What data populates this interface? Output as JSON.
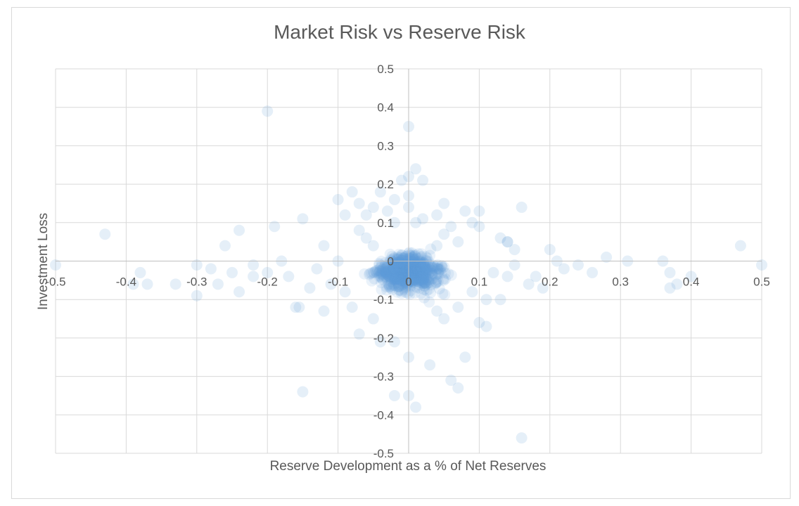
{
  "chart_data": {
    "type": "scatter",
    "title": "Market Risk vs Reserve Risk",
    "xlabel": "Reserve Development as a % of Net Reserves",
    "ylabel": "Investment Loss",
    "xlim": [
      -0.5,
      0.5
    ],
    "ylim": [
      -0.5,
      0.5
    ],
    "x_ticks": [
      -0.5,
      -0.4,
      -0.3,
      -0.2,
      -0.1,
      0,
      0.1,
      0.2,
      0.3,
      0.4,
      0.5
    ],
    "y_ticks": [
      0.5,
      0.4,
      0.3,
      0.2,
      0.1,
      0,
      -0.1,
      -0.2,
      -0.3,
      -0.4,
      -0.5
    ],
    "x_tick_labels": [
      "-0.5",
      "-0.4",
      "-0.3",
      "-0.2",
      "-0.1",
      "0",
      "0.1",
      "0.2",
      "0.3",
      "0.4",
      "0.5"
    ],
    "y_tick_labels": [
      "0.5",
      "0.4",
      "0.3",
      "0.2",
      "0.1",
      "0",
      "-0.1",
      "-0.2",
      "-0.3",
      "-0.4",
      "-0.5"
    ],
    "grid": true,
    "marker_color": "#5b9bd5",
    "points": [
      {
        "x": -0.43,
        "y": 0.07
      },
      {
        "x": -0.2,
        "y": 0.39
      },
      {
        "x": 0.0,
        "y": 0.35
      },
      {
        "x": 0.47,
        "y": 0.04
      },
      {
        "x": 0.5,
        "y": -0.01
      },
      {
        "x": -0.5,
        "y": -0.01
      },
      {
        "x": -0.38,
        "y": -0.03
      },
      {
        "x": -0.37,
        "y": -0.06
      },
      {
        "x": -0.39,
        "y": -0.06
      },
      {
        "x": -0.33,
        "y": -0.06
      },
      {
        "x": -0.3,
        "y": -0.09
      },
      {
        "x": -0.3,
        "y": -0.01
      },
      {
        "x": -0.28,
        "y": -0.02
      },
      {
        "x": -0.27,
        "y": -0.06
      },
      {
        "x": -0.25,
        "y": -0.03
      },
      {
        "x": -0.24,
        "y": 0.08
      },
      {
        "x": -0.26,
        "y": 0.04
      },
      {
        "x": -0.24,
        "y": -0.08
      },
      {
        "x": -0.22,
        "y": -0.04
      },
      {
        "x": -0.22,
        "y": -0.01
      },
      {
        "x": -0.2,
        "y": -0.03
      },
      {
        "x": -0.19,
        "y": 0.09
      },
      {
        "x": -0.18,
        "y": 0.0
      },
      {
        "x": -0.17,
        "y": -0.04
      },
      {
        "x": -0.16,
        "y": -0.12
      },
      {
        "x": -0.155,
        "y": -0.12
      },
      {
        "x": -0.15,
        "y": 0.11
      },
      {
        "x": -0.15,
        "y": -0.34
      },
      {
        "x": -0.14,
        "y": -0.07
      },
      {
        "x": -0.13,
        "y": -0.02
      },
      {
        "x": -0.12,
        "y": -0.13
      },
      {
        "x": -0.12,
        "y": 0.04
      },
      {
        "x": -0.1,
        "y": 0.0
      },
      {
        "x": -0.1,
        "y": 0.16
      },
      {
        "x": -0.09,
        "y": 0.12
      },
      {
        "x": -0.08,
        "y": 0.18
      },
      {
        "x": -0.07,
        "y": 0.15
      },
      {
        "x": -0.06,
        "y": 0.12
      },
      {
        "x": -0.05,
        "y": 0.14
      },
      {
        "x": -0.04,
        "y": 0.18
      },
      {
        "x": -0.03,
        "y": 0.13
      },
      {
        "x": -0.02,
        "y": 0.16
      },
      {
        "x": 0.0,
        "y": 0.22
      },
      {
        "x": 0.01,
        "y": 0.24
      },
      {
        "x": 0.02,
        "y": 0.21
      },
      {
        "x": -0.01,
        "y": 0.21
      },
      {
        "x": 0.0,
        "y": 0.17
      },
      {
        "x": 0.0,
        "y": 0.14
      },
      {
        "x": 0.01,
        "y": 0.1
      },
      {
        "x": 0.02,
        "y": 0.11
      },
      {
        "x": -0.02,
        "y": 0.1
      },
      {
        "x": 0.05,
        "y": 0.15
      },
      {
        "x": 0.04,
        "y": 0.12
      },
      {
        "x": 0.06,
        "y": 0.09
      },
      {
        "x": 0.08,
        "y": 0.13
      },
      {
        "x": 0.09,
        "y": 0.1
      },
      {
        "x": 0.1,
        "y": 0.13
      },
      {
        "x": 0.1,
        "y": 0.09
      },
      {
        "x": 0.16,
        "y": 0.14
      },
      {
        "x": 0.14,
        "y": 0.05
      },
      {
        "x": 0.14,
        "y": 0.05
      },
      {
        "x": 0.13,
        "y": 0.06
      },
      {
        "x": 0.15,
        "y": 0.03
      },
      {
        "x": 0.2,
        "y": 0.03
      },
      {
        "x": 0.28,
        "y": 0.01
      },
      {
        "x": 0.31,
        "y": 0.0
      },
      {
        "x": 0.36,
        "y": 0.0
      },
      {
        "x": 0.37,
        "y": -0.03
      },
      {
        "x": 0.37,
        "y": -0.07
      },
      {
        "x": 0.4,
        "y": -0.04
      },
      {
        "x": 0.38,
        "y": -0.06
      },
      {
        "x": 0.26,
        "y": -0.03
      },
      {
        "x": 0.24,
        "y": -0.01
      },
      {
        "x": 0.22,
        "y": -0.02
      },
      {
        "x": 0.21,
        "y": 0.0
      },
      {
        "x": 0.18,
        "y": -0.04
      },
      {
        "x": 0.19,
        "y": -0.07
      },
      {
        "x": 0.17,
        "y": -0.06
      },
      {
        "x": 0.15,
        "y": -0.01
      },
      {
        "x": 0.14,
        "y": -0.04
      },
      {
        "x": 0.12,
        "y": -0.03
      },
      {
        "x": 0.11,
        "y": -0.1
      },
      {
        "x": 0.1,
        "y": -0.16
      },
      {
        "x": 0.11,
        "y": -0.17
      },
      {
        "x": 0.08,
        "y": -0.25
      },
      {
        "x": 0.07,
        "y": -0.33
      },
      {
        "x": 0.06,
        "y": -0.31
      },
      {
        "x": 0.03,
        "y": -0.27
      },
      {
        "x": 0.0,
        "y": -0.25
      },
      {
        "x": 0.0,
        "y": -0.35
      },
      {
        "x": 0.01,
        "y": -0.38
      },
      {
        "x": -0.02,
        "y": -0.35
      },
      {
        "x": -0.02,
        "y": -0.21
      },
      {
        "x": -0.04,
        "y": -0.21
      },
      {
        "x": -0.07,
        "y": -0.19
      },
      {
        "x": -0.05,
        "y": -0.15
      },
      {
        "x": 0.16,
        "y": -0.46
      },
      {
        "x": 0.05,
        "y": -0.15
      },
      {
        "x": 0.04,
        "y": -0.13
      },
      {
        "x": 0.07,
        "y": -0.12
      },
      {
        "x": 0.09,
        "y": -0.08
      },
      {
        "x": 0.13,
        "y": -0.1
      },
      {
        "x": -0.08,
        "y": -0.12
      },
      {
        "x": -0.09,
        "y": -0.08
      },
      {
        "x": -0.11,
        "y": -0.06
      },
      {
        "x": -0.06,
        "y": 0.06
      },
      {
        "x": -0.07,
        "y": 0.08
      },
      {
        "x": 0.05,
        "y": 0.07
      },
      {
        "x": 0.07,
        "y": 0.05
      },
      {
        "x": -0.05,
        "y": 0.04
      },
      {
        "x": 0.04,
        "y": 0.04
      }
    ]
  }
}
